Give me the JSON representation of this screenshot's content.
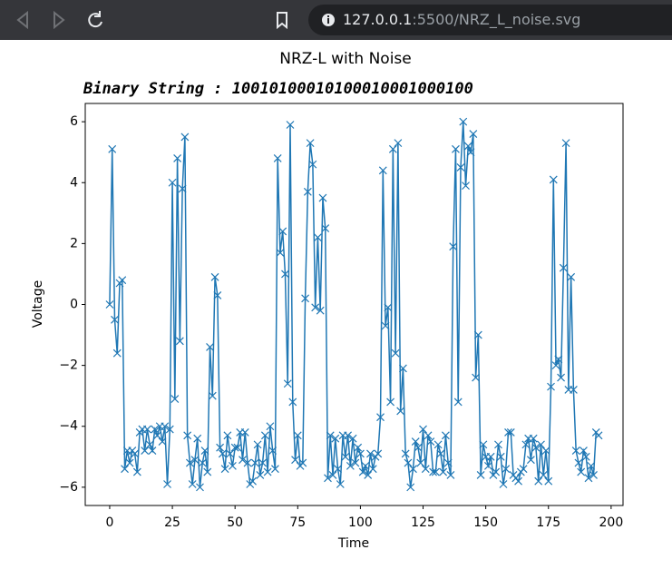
{
  "browser": {
    "url_host": "127.0.0.1",
    "url_path": ":5500/NRZ_L_noise.svg"
  },
  "chart_data": {
    "type": "line",
    "title": "NRZ-L with Noise",
    "subtitle": "Binary String : 10010100010100010001000100",
    "x_label": "Time",
    "y_label": "Voltage",
    "marker": "x",
    "xlim": [
      -9.75,
      204.75
    ],
    "ylim": [
      -6.6,
      6.6
    ],
    "xticks": [
      0,
      25,
      50,
      75,
      100,
      125,
      150,
      175,
      200
    ],
    "yticks": [
      {
        "value": -6,
        "label": "−6"
      },
      {
        "value": -4,
        "label": "−4"
      },
      {
        "value": -2,
        "label": "−2"
      },
      0,
      2,
      4,
      6
    ],
    "x": [
      0,
      1,
      2,
      3,
      4,
      5,
      6,
      7,
      8,
      9,
      10,
      11,
      12,
      13,
      14,
      15,
      16,
      17,
      18,
      19,
      20,
      21,
      22,
      23,
      24,
      25,
      26,
      27,
      28,
      29,
      30,
      31,
      32,
      33,
      34,
      35,
      36,
      37,
      38,
      39,
      40,
      41,
      42,
      43,
      44,
      45,
      46,
      47,
      48,
      49,
      50,
      51,
      52,
      53,
      54,
      55,
      56,
      57,
      58,
      59,
      60,
      61,
      62,
      63,
      64,
      65,
      66,
      67,
      68,
      69,
      70,
      71,
      72,
      73,
      74,
      75,
      76,
      77,
      78,
      79,
      80,
      81,
      82,
      83,
      84,
      85,
      86,
      87,
      88,
      89,
      90,
      91,
      92,
      93,
      94,
      95,
      96,
      97,
      98,
      99,
      100,
      101,
      102,
      103,
      104,
      105,
      106,
      107,
      108,
      109,
      110,
      111,
      112,
      113,
      114,
      115,
      116,
      117,
      118,
      119,
      120,
      121,
      122,
      123,
      124,
      125,
      126,
      127,
      128,
      129,
      130,
      131,
      132,
      133,
      134,
      135,
      136,
      137,
      138,
      139,
      140,
      141,
      142,
      143,
      144,
      145,
      146,
      147,
      148,
      149,
      150,
      151,
      152,
      153,
      154,
      155,
      156,
      157,
      158,
      159,
      160,
      161,
      162,
      163,
      164,
      165,
      166,
      167,
      168,
      169,
      170,
      171,
      172,
      173,
      174,
      175,
      176,
      177,
      178,
      179,
      180,
      181,
      182,
      183,
      184,
      185,
      186,
      187,
      188,
      189,
      190,
      191,
      192,
      193,
      194,
      195
    ],
    "series": [
      {
        "name": "NRZ-L",
        "color": "#1f77b4",
        "values": [
          0,
          5.1,
          -0.5,
          -1.6,
          0.7,
          0.8,
          -5.4,
          -4.8,
          -5.2,
          -4.8,
          -4.9,
          -5.5,
          -4.2,
          -4.1,
          -4.8,
          -4.1,
          -4.6,
          -4.8,
          -4.1,
          -4.3,
          -4.0,
          -4.5,
          -4.0,
          -5.9,
          -4.1,
          4.0,
          -3.1,
          4.8,
          -1.2,
          3.8,
          5.5,
          -4.3,
          -5.2,
          -5.9,
          -5.1,
          -4.4,
          -6.0,
          -5.2,
          -4.8,
          -5.5,
          -1.4,
          -3.0,
          0.9,
          0.3,
          -4.7,
          -4.9,
          -5.4,
          -4.3,
          -4.9,
          -5.3,
          -4.7,
          -4.7,
          -4.2,
          -5.1,
          -4.2,
          -5.2,
          -5.9,
          -5.8,
          -5.2,
          -4.6,
          -5.6,
          -5.2,
          -4.3,
          -5.5,
          -4.0,
          -4.8,
          -5.4,
          4.8,
          1.7,
          2.4,
          1.0,
          -2.6,
          5.9,
          -3.2,
          -5.1,
          -4.3,
          -5.3,
          -5.2,
          0.2,
          3.7,
          5.3,
          4.6,
          -0.1,
          2.2,
          -0.2,
          3.5,
          2.5,
          -5.7,
          -4.3,
          -5.6,
          -4.4,
          -5.4,
          -5.9,
          -4.3,
          -5.0,
          -4.3,
          -5.3,
          -4.4,
          -5.2,
          -4.7,
          -4.9,
          -5.5,
          -5.3,
          -5.6,
          -4.9,
          -5.4,
          -5.0,
          -4.9,
          -3.7,
          4.4,
          -0.7,
          -0.1,
          -3.2,
          5.1,
          -1.6,
          5.3,
          -3.5,
          -2.1,
          -4.9,
          -5.2,
          -6.0,
          -5.4,
          -4.5,
          -4.7,
          -5.2,
          -4.1,
          -5.4,
          -4.3,
          -4.5,
          -5.5,
          -5.5,
          -4.6,
          -4.9,
          -5.5,
          -4.3,
          -5.2,
          -5.6,
          1.9,
          5.1,
          -3.2,
          4.5,
          6.0,
          3.9,
          5.2,
          5.0,
          5.6,
          -2.4,
          -1.0,
          -5.6,
          -4.6,
          -5.0,
          -5.3,
          -5.0,
          -5.6,
          -5.5,
          -4.6,
          -5.0,
          -5.9,
          -5.4,
          -4.2,
          -4.2,
          -5.6,
          -5.7,
          -5.8,
          -5.5,
          -5.4,
          -4.6,
          -4.4,
          -5.1,
          -4.4,
          -4.7,
          -5.8,
          -4.6,
          -5.6,
          -4.8,
          -5.8,
          -2.7,
          4.1,
          -2.0,
          -1.8,
          -2.4,
          1.2,
          5.3,
          -2.8,
          0.9,
          -2.8,
          -4.8,
          -5.2,
          -5.5,
          -4.8,
          -5.0,
          -5.7,
          -5.3,
          -5.6,
          -4.2,
          -4.3
        ]
      }
    ]
  }
}
